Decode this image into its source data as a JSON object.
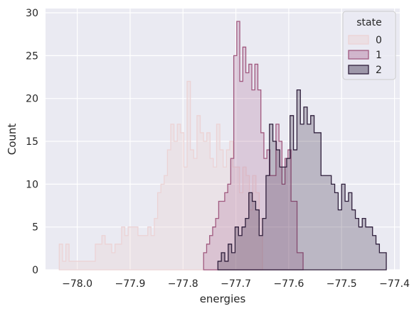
{
  "chart_data": {
    "type": "histogram",
    "xlabel": "energies",
    "ylabel": "Count",
    "xlim": [
      -78.06,
      -77.39
    ],
    "ylim": [
      0,
      30.5
    ],
    "xticks": [
      -78.0,
      -77.9,
      -77.8,
      -77.7,
      -77.6,
      -77.5,
      -77.4
    ],
    "xtick_labels": [
      "−78.0",
      "−77.9",
      "−77.8",
      "−77.7",
      "−77.6",
      "−77.5",
      "−77.4"
    ],
    "yticks": [
      0,
      5,
      10,
      15,
      20,
      25,
      30
    ],
    "ytick_labels": [
      "0",
      "5",
      "10",
      "15",
      "20",
      "25",
      "30"
    ],
    "grid": true,
    "legend": {
      "title": "state",
      "position": "top-right",
      "entries": [
        "0",
        "1",
        "2"
      ]
    },
    "series": [
      {
        "name": "0",
        "fill": "#ecd3d5",
        "edge": "#ecd3d5",
        "fill_opacity": 0.35,
        "bin_start": -78.034,
        "bin_width": 0.0062,
        "counts": [
          3,
          1,
          3,
          1,
          1,
          1,
          1,
          1,
          1,
          1,
          1,
          3,
          3,
          4,
          3,
          3,
          2,
          3,
          3,
          5,
          4,
          5,
          5,
          5,
          4,
          4,
          4,
          5,
          4,
          6,
          9,
          10,
          11,
          14,
          17,
          15,
          17,
          16,
          12,
          22,
          14,
          13,
          18,
          16,
          15,
          16,
          13,
          12,
          17,
          14,
          12,
          14,
          15,
          12,
          12,
          9,
          12,
          11,
          7,
          11,
          9,
          6
        ]
      },
      {
        "name": "1",
        "fill": "#aa6792",
        "edge": "#a0597f",
        "fill_opacity": 0.25,
        "bin_start": -77.761,
        "bin_width": 0.0057,
        "counts": [
          2,
          3,
          4,
          5,
          6,
          8,
          8,
          9,
          10,
          13,
          25,
          29,
          22,
          26,
          23,
          24,
          21,
          24,
          21,
          16,
          13,
          14,
          11,
          11,
          17,
          15,
          10,
          13,
          14,
          8,
          8,
          2,
          2
        ]
      },
      {
        "name": "2",
        "fill": "#2e1e3b",
        "edge": "#2e1e3b",
        "fill_opacity": 0.25,
        "bin_start": -77.734,
        "bin_width": 0.0065,
        "counts": [
          1,
          2,
          1,
          3,
          2,
          5,
          4,
          5,
          6,
          9,
          8,
          7,
          4,
          6,
          11,
          17,
          15,
          14,
          12,
          12,
          13,
          18,
          14,
          21,
          17,
          19,
          17,
          18,
          16,
          16,
          11,
          11,
          11,
          10,
          9,
          7,
          10,
          8,
          9,
          7,
          6,
          5,
          6,
          5,
          5,
          4,
          3,
          2,
          2
        ]
      }
    ]
  }
}
